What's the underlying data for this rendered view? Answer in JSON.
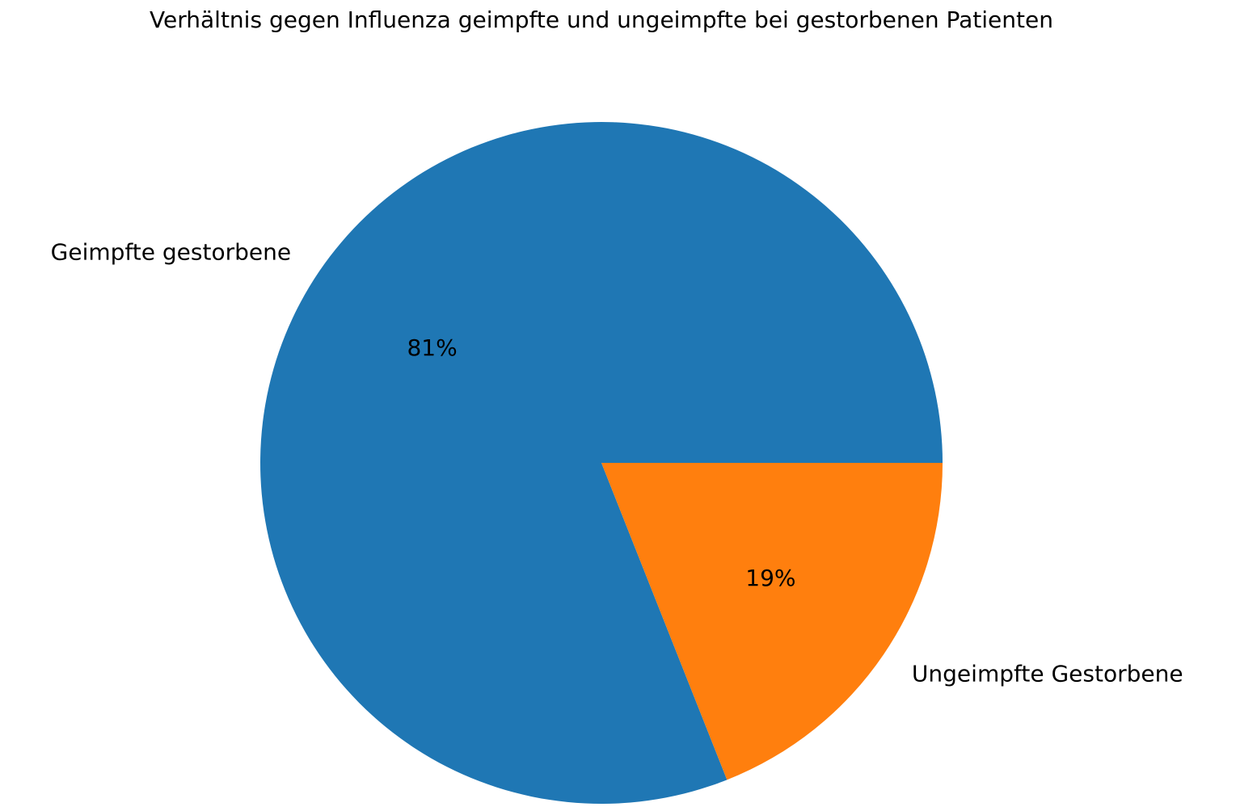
{
  "chart_data": {
    "type": "pie",
    "title": "Verhältnis gegen Influenza geimpfte und ungeimpfte bei gestorbenen Patienten",
    "slices": [
      {
        "label": "Geimpfte gestorbene",
        "value": 81,
        "pct_label": "81%",
        "color": "#1f77b4"
      },
      {
        "label": "Ungeimpfte Gestorbene",
        "value": 19,
        "pct_label": "19%",
        "color": "#ff7f0e"
      }
    ],
    "start_angle_deg": 0,
    "direction": "counterclockwise"
  }
}
